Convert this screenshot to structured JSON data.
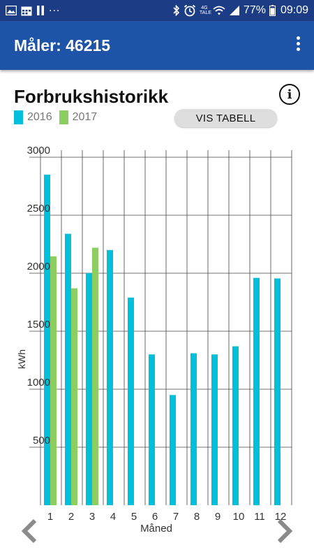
{
  "status_bar": {
    "dots": "...",
    "battery": "77%",
    "time": "09:09",
    "network_top": "4G",
    "network_bottom": "TALE"
  },
  "app_bar": {
    "title": "Måler: 46215"
  },
  "header": {
    "title": "Forbrukshistorikk",
    "table_button": "VIS TABELL",
    "info_glyph": "i"
  },
  "legend": [
    {
      "label": "2016",
      "color": "#00c0dc"
    },
    {
      "label": "2017",
      "color": "#8dce63"
    }
  ],
  "chart_data": {
    "type": "bar",
    "xlabel": "Måned",
    "ylabel": "kWh",
    "ylim": [
      0,
      3000
    ],
    "yticks": [
      "500",
      "1000",
      "1500",
      "2000",
      "2500",
      "3000"
    ],
    "ytick_values": [
      500,
      1000,
      1500,
      2000,
      2500,
      3000
    ],
    "categories": [
      "1",
      "2",
      "3",
      "4",
      "5",
      "6",
      "7",
      "8",
      "9",
      "10",
      "11",
      "12"
    ],
    "grid": true,
    "legend_position": "top-left",
    "series": [
      {
        "name": "2016",
        "color": "#00c0dc",
        "values": [
          2850,
          2340,
          2000,
          2200,
          1790,
          1300,
          950,
          1310,
          1300,
          1370,
          1960,
          1955
        ]
      },
      {
        "name": "2017",
        "color": "#8dce63",
        "values": [
          2145,
          1870,
          2220,
          null,
          null,
          null,
          null,
          null,
          null,
          null,
          null,
          null
        ]
      }
    ]
  }
}
